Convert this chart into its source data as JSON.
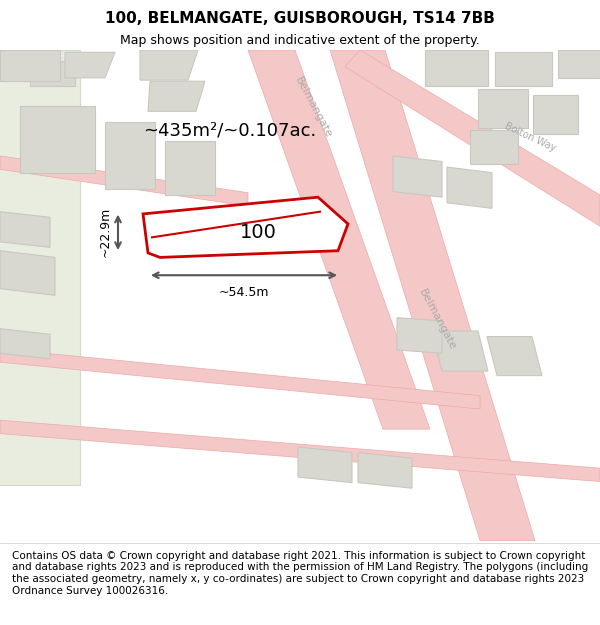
{
  "title": "100, BELMANGATE, GUISBOROUGH, TS14 7BB",
  "subtitle": "Map shows position and indicative extent of the property.",
  "area_label": "~435m²/~0.107ac.",
  "width_label": "~54.5m",
  "height_label": "~22.9m",
  "property_number": "100",
  "copyright_text": "Contains OS data © Crown copyright and database right 2021. This information is subject to Crown copyright and database rights 2023 and is reproduced with the permission of HM Land Registry. The polygons (including the associated geometry, namely x, y co-ordinates) are subject to Crown copyright and database rights 2023 Ordnance Survey 100026316.",
  "map_bg": "#f5f5f0",
  "road_color": "#f5c8c8",
  "road_outline": "#f0a8a8",
  "building_fill": "#d8d8d0",
  "building_outline": "#c8c8c0",
  "property_outline_color": "#cc0000",
  "green_fill": "#e8ede0",
  "green_outline": "#d5dac8",
  "title_fontsize": 11,
  "subtitle_fontsize": 9,
  "copyright_fontsize": 7.5
}
